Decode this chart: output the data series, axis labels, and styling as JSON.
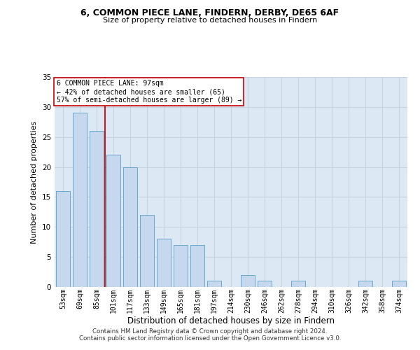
{
  "title1": "6, COMMON PIECE LANE, FINDERN, DERBY, DE65 6AF",
  "title2": "Size of property relative to detached houses in Findern",
  "xlabel": "Distribution of detached houses by size in Findern",
  "ylabel": "Number of detached properties",
  "categories": [
    "53sqm",
    "69sqm",
    "85sqm",
    "101sqm",
    "117sqm",
    "133sqm",
    "149sqm",
    "165sqm",
    "181sqm",
    "197sqm",
    "214sqm",
    "230sqm",
    "246sqm",
    "262sqm",
    "278sqm",
    "294sqm",
    "310sqm",
    "326sqm",
    "342sqm",
    "358sqm",
    "374sqm"
  ],
  "values": [
    16,
    29,
    26,
    22,
    20,
    12,
    8,
    7,
    7,
    1,
    0,
    2,
    1,
    0,
    1,
    0,
    0,
    0,
    1,
    0,
    1
  ],
  "bar_color": "#c5d8ed",
  "bar_edge_color": "#5a9ec9",
  "vline_x": 2.5,
  "vline_color": "#cc0000",
  "annotation_text": "6 COMMON PIECE LANE: 97sqm\n← 42% of detached houses are smaller (65)\n57% of semi-detached houses are larger (89) →",
  "annotation_box_color": "#ffffff",
  "annotation_box_edge": "#cc0000",
  "ylim": [
    0,
    35
  ],
  "yticks": [
    0,
    5,
    10,
    15,
    20,
    25,
    30,
    35
  ],
  "grid_color": "#c8d4e0",
  "bg_color": "#dce9f5",
  "footer1": "Contains HM Land Registry data © Crown copyright and database right 2024.",
  "footer2": "Contains public sector information licensed under the Open Government Licence v3.0."
}
